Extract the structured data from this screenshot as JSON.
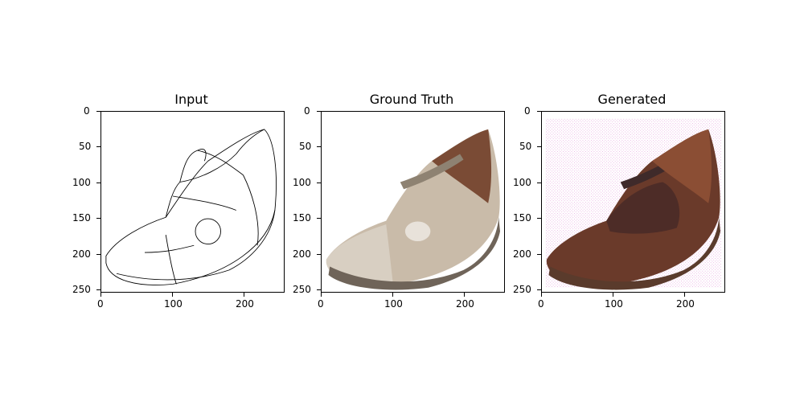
{
  "figure": {
    "panels": [
      {
        "title": "Input",
        "x_ticks": [
          "0",
          "100",
          "200"
        ],
        "y_ticks": [
          "0",
          "50",
          "100",
          "150",
          "200",
          "250"
        ],
        "image": "shoe-edge-sketch"
      },
      {
        "title": "Ground Truth",
        "x_ticks": [
          "0",
          "100",
          "200"
        ],
        "y_ticks": [
          "0",
          "50",
          "100",
          "150",
          "200",
          "250"
        ],
        "image": "shoe-photo-beige"
      },
      {
        "title": "Generated",
        "x_ticks": [
          "0",
          "100",
          "200"
        ],
        "y_ticks": [
          "0",
          "50",
          "100",
          "150",
          "200",
          "250"
        ],
        "image": "shoe-generated-brown"
      }
    ],
    "colors": {
      "beige_shoe": "#c9bba9",
      "brown_shoe": "#6a3a2a",
      "pink_noise": "#e7a8e0"
    }
  }
}
